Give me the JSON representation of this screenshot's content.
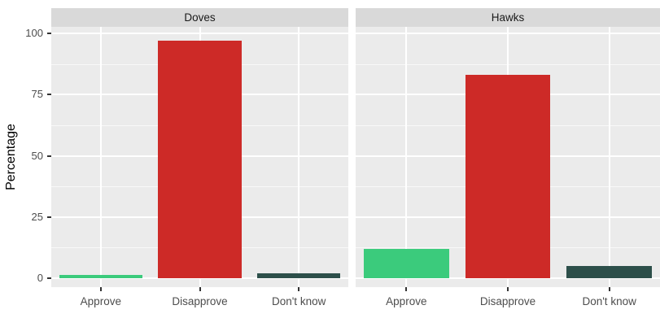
{
  "chart_data": {
    "type": "bar",
    "title": "",
    "ylabel": "Percentage",
    "xlabel": "",
    "ylim": [
      0,
      105
    ],
    "yticks": [
      0,
      25,
      50,
      75,
      100
    ],
    "yticks_minor": [
      12.5,
      37.5,
      62.5,
      87.5
    ],
    "categories": [
      "Approve",
      "Disapprove",
      "Don't know"
    ],
    "facets": [
      {
        "label": "Doves",
        "values": [
          1.5,
          97,
          2
        ]
      },
      {
        "label": "Hawks",
        "values": [
          12,
          83,
          5
        ]
      }
    ],
    "series_colors": [
      "#3bcb7c",
      "#cd2a27",
      "#2d4f4a"
    ],
    "legend_position": "none",
    "grid": "horizontal major+minor, vertical major at category centers",
    "panel_bg": "#ebebeb",
    "strip_bg": "#d9d9d9",
    "grid_color": "#ffffff",
    "axis_text_color": "#4d4d4d",
    "strip_text_color": "#1a1a1a",
    "tick_mark_color": "#333333"
  }
}
